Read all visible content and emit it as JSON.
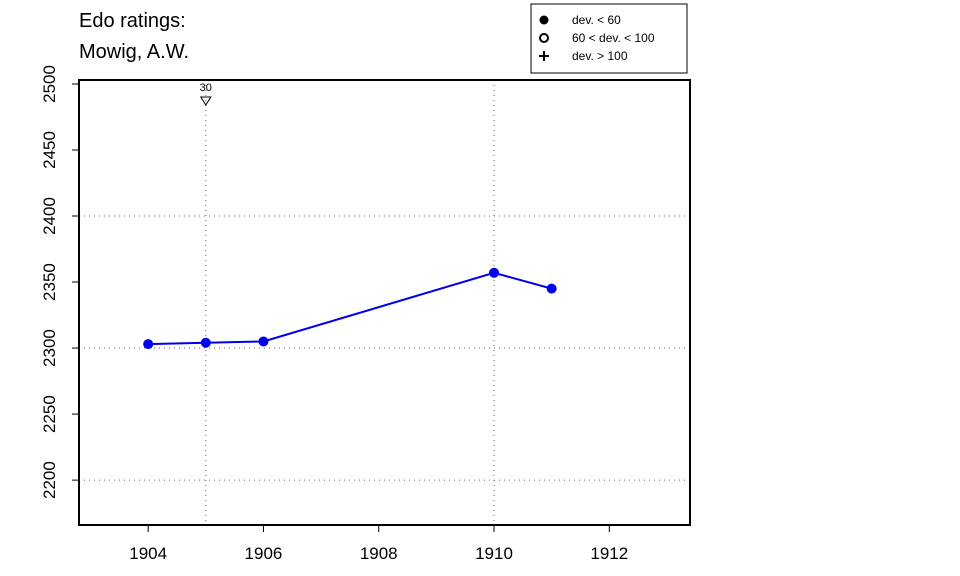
{
  "chart_data": {
    "type": "line",
    "title_lines": [
      "Edo ratings:",
      "Mowig, A.W."
    ],
    "xlabel": "",
    "ylabel": "",
    "xlim": [
      1902.8,
      1913.4
    ],
    "ylim": [
      2166,
      2503
    ],
    "x_ticks": [
      1904,
      1906,
      1908,
      1910,
      1912
    ],
    "y_ticks": [
      2200,
      2250,
      2300,
      2350,
      2400,
      2450,
      2500
    ],
    "grid": true,
    "grid_x": [
      1905,
      1910
    ],
    "grid_y": [
      2200,
      2300,
      2400
    ],
    "line_color": "#0000ee",
    "series": [
      {
        "x": [
          1904,
          1905,
          1906,
          1910,
          1911
        ],
        "y": [
          2303,
          2304,
          2305,
          2357,
          2345
        ],
        "marker": "filled-circle"
      }
    ],
    "annotations": [
      {
        "x": 1905,
        "label": "30",
        "marker": "down-triangle"
      }
    ],
    "legend": {
      "position": "top-right",
      "entries": [
        {
          "symbol": "filled-circle",
          "label": "dev. < 60"
        },
        {
          "symbol": "open-circle",
          "label": "60 < dev. < 100"
        },
        {
          "symbol": "plus",
          "label": "dev. > 100"
        }
      ]
    }
  }
}
